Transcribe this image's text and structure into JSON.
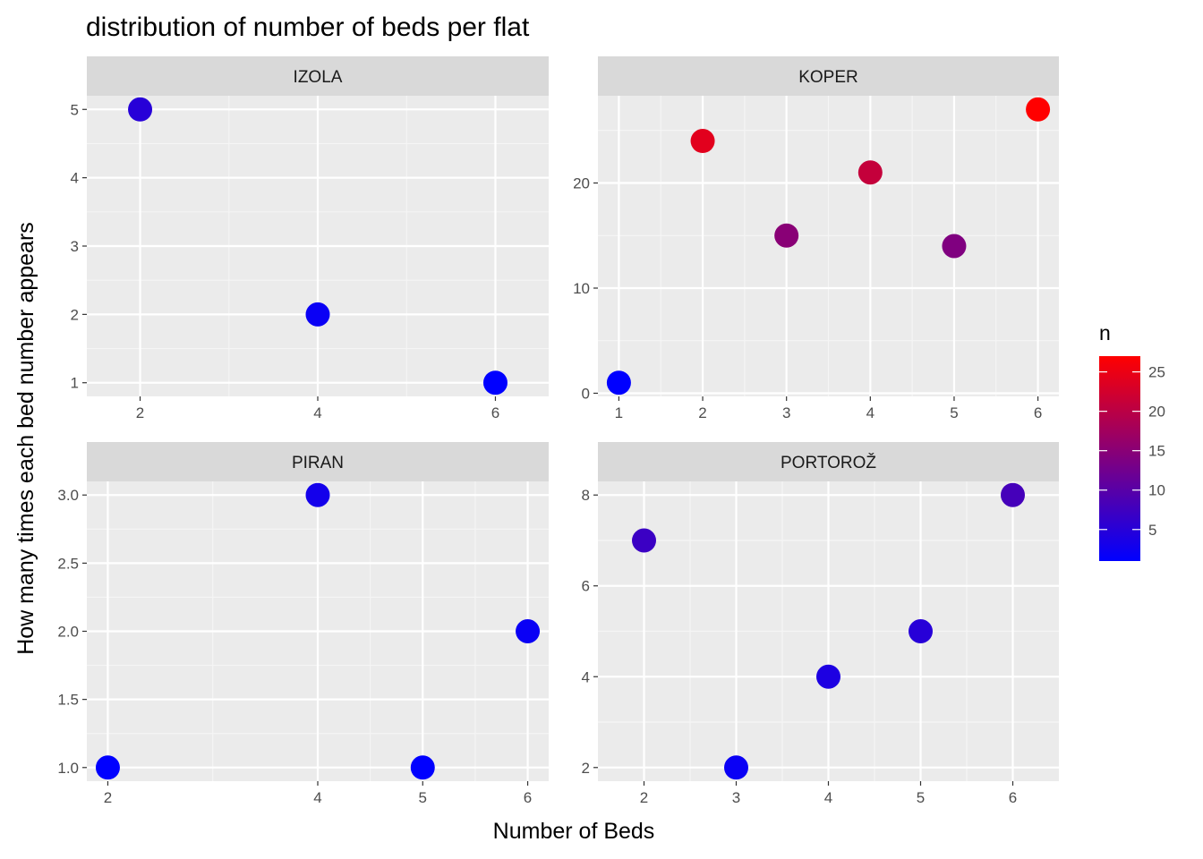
{
  "chart_data": {
    "type": "scatter",
    "title": "distribution of number of beds per flat",
    "xlabel": "Number of Beds",
    "ylabel": "How many times each bed number appears",
    "grid": true,
    "facet_layout": "2x2",
    "point_color_scale": {
      "legend_title": "n",
      "low_color": "#0000ff",
      "high_color": "#ff0000",
      "range": [
        1,
        27
      ],
      "breaks": [
        5,
        10,
        15,
        20,
        25
      ],
      "legend_placement": "right"
    },
    "panels": [
      {
        "name": "IZOLA",
        "xlim": [
          1.4,
          6.6
        ],
        "ylim": [
          0.8,
          5.2
        ],
        "x_ticks": [
          2,
          4,
          6
        ],
        "y_ticks": [
          1,
          2,
          3,
          4,
          5
        ],
        "y_tick_labels": [
          "1",
          "2",
          "3",
          "4",
          "5"
        ],
        "points": [
          {
            "x": 2,
            "y": 5
          },
          {
            "x": 4,
            "y": 2
          },
          {
            "x": 6,
            "y": 1
          }
        ]
      },
      {
        "name": "KOPER",
        "xlim": [
          0.75,
          6.25
        ],
        "ylim": [
          -0.3,
          28.3
        ],
        "x_ticks": [
          1,
          2,
          3,
          4,
          5,
          6
        ],
        "y_ticks": [
          0,
          10,
          20
        ],
        "y_tick_labels": [
          "0",
          "10",
          "20"
        ],
        "points": [
          {
            "x": 1,
            "y": 1
          },
          {
            "x": 2,
            "y": 24
          },
          {
            "x": 3,
            "y": 15
          },
          {
            "x": 4,
            "y": 21
          },
          {
            "x": 5,
            "y": 14
          },
          {
            "x": 6,
            "y": 27
          }
        ]
      },
      {
        "name": "PIRAN",
        "xlim": [
          1.8,
          6.2
        ],
        "ylim": [
          0.9,
          3.1
        ],
        "x_ticks": [
          2,
          4,
          5,
          6
        ],
        "y_ticks": [
          1.0,
          1.5,
          2.0,
          2.5,
          3.0
        ],
        "y_tick_labels": [
          "1.0",
          "1.5",
          "2.0",
          "2.5",
          "3.0"
        ],
        "points": [
          {
            "x": 2,
            "y": 1
          },
          {
            "x": 4,
            "y": 3
          },
          {
            "x": 5,
            "y": 1
          },
          {
            "x": 6,
            "y": 2
          }
        ]
      },
      {
        "name": "PORTOROŽ",
        "xlim": [
          1.5,
          6.5
        ],
        "ylim": [
          1.7,
          8.3
        ],
        "x_ticks": [
          2,
          3,
          4,
          5,
          6
        ],
        "y_ticks": [
          2,
          4,
          6,
          8
        ],
        "y_tick_labels": [
          "2",
          "4",
          "6",
          "8"
        ],
        "points": [
          {
            "x": 2,
            "y": 7
          },
          {
            "x": 3,
            "y": 2
          },
          {
            "x": 4,
            "y": 4
          },
          {
            "x": 5,
            "y": 5
          },
          {
            "x": 6,
            "y": 8
          }
        ]
      }
    ]
  }
}
